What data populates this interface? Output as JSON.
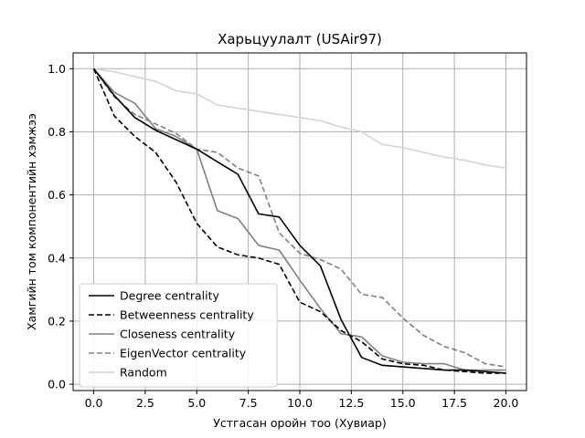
{
  "chart_data": {
    "type": "line",
    "title": "Харьцуулалт (USAir97)",
    "xlabel": "Устгасан оройн тоо (Хувиар)",
    "ylabel": "Хамгийн том компонентийн хэмжээ",
    "xlim": [
      -1.0,
      21.0
    ],
    "ylim": [
      -0.02,
      1.05
    ],
    "x_ticks": [
      0.0,
      2.5,
      5.0,
      7.5,
      10.0,
      12.5,
      15.0,
      17.5,
      20.0
    ],
    "x_tick_labels": [
      "0.0",
      "2.5",
      "5.0",
      "7.5",
      "10.0",
      "12.5",
      "15.0",
      "17.5",
      "20.0"
    ],
    "y_ticks": [
      0.0,
      0.2,
      0.4,
      0.6,
      0.8,
      1.0
    ],
    "y_tick_labels": [
      "0.0",
      "0.2",
      "0.4",
      "0.6",
      "0.8",
      "1.0"
    ],
    "grid": true,
    "legend_position": "lower-left",
    "x": [
      0,
      1,
      2,
      3,
      4,
      5,
      6,
      7,
      8,
      9,
      10,
      11,
      12,
      13,
      14,
      15,
      16,
      17,
      18,
      19,
      20
    ],
    "series": [
      {
        "name": "Degree centrality",
        "color": "#000000",
        "dash": "solid",
        "values": [
          1.0,
          0.915,
          0.845,
          0.805,
          0.775,
          0.745,
          0.705,
          0.665,
          0.54,
          0.53,
          0.44,
          0.375,
          0.205,
          0.085,
          0.06,
          0.055,
          0.05,
          0.045,
          0.045,
          0.04,
          0.035
        ]
      },
      {
        "name": "Betweenness centrality",
        "color": "#000000",
        "dash": "dashed",
        "values": [
          1.0,
          0.85,
          0.785,
          0.735,
          0.64,
          0.51,
          0.435,
          0.41,
          0.4,
          0.38,
          0.26,
          0.23,
          0.17,
          0.135,
          0.08,
          0.065,
          0.06,
          0.045,
          0.04,
          0.035,
          0.035
        ]
      },
      {
        "name": "Closeness centrality",
        "color": "#808080",
        "dash": "solid",
        "values": [
          1.0,
          0.925,
          0.89,
          0.81,
          0.785,
          0.745,
          0.55,
          0.525,
          0.44,
          0.425,
          0.33,
          0.24,
          0.16,
          0.15,
          0.09,
          0.07,
          0.065,
          0.065,
          0.045,
          0.045,
          0.045
        ]
      },
      {
        "name": "EigenVector centrality",
        "color": "#808080",
        "dash": "dashed",
        "values": [
          1.0,
          0.91,
          0.855,
          0.825,
          0.795,
          0.745,
          0.735,
          0.685,
          0.66,
          0.48,
          0.415,
          0.395,
          0.365,
          0.285,
          0.275,
          0.21,
          0.155,
          0.12,
          0.1,
          0.065,
          0.055
        ]
      },
      {
        "name": "Random",
        "color": "#d3d3d3",
        "dash": "solid",
        "values": [
          1.0,
          0.99,
          0.975,
          0.96,
          0.93,
          0.92,
          0.885,
          0.875,
          0.865,
          0.855,
          0.845,
          0.835,
          0.815,
          0.8,
          0.76,
          0.75,
          0.735,
          0.72,
          0.71,
          0.695,
          0.685
        ]
      }
    ]
  }
}
